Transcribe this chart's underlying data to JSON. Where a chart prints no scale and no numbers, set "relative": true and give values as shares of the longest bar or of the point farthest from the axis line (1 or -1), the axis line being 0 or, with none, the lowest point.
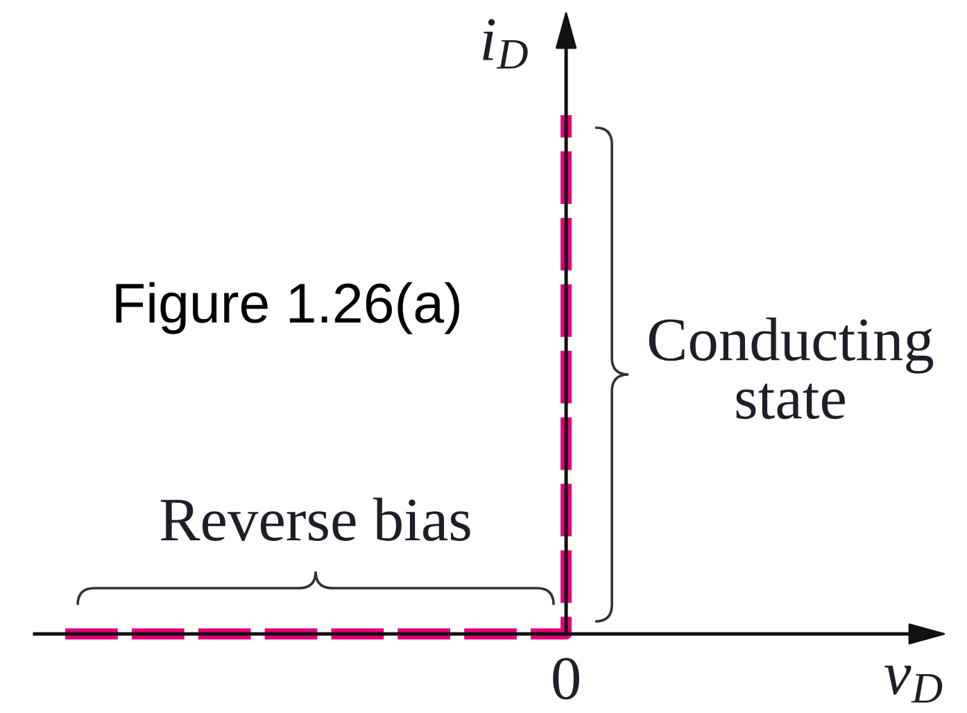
{
  "chart_data": {
    "type": "step",
    "relative": true,
    "line_style": "dashed",
    "categories": [
      null,
      null
    ],
    "series": [
      {
        "color": "#e5007d",
        "values": [
          0,
          1
        ]
      }
    ],
    "xlabel": "v$_{D}$",
    "ylabel": "i$_{D}$",
    "annotations": [
      "Reverse bias",
      "Conducting\nstate",
      "0",
      "Figure 1.26(a)"
    ]
  }
}
